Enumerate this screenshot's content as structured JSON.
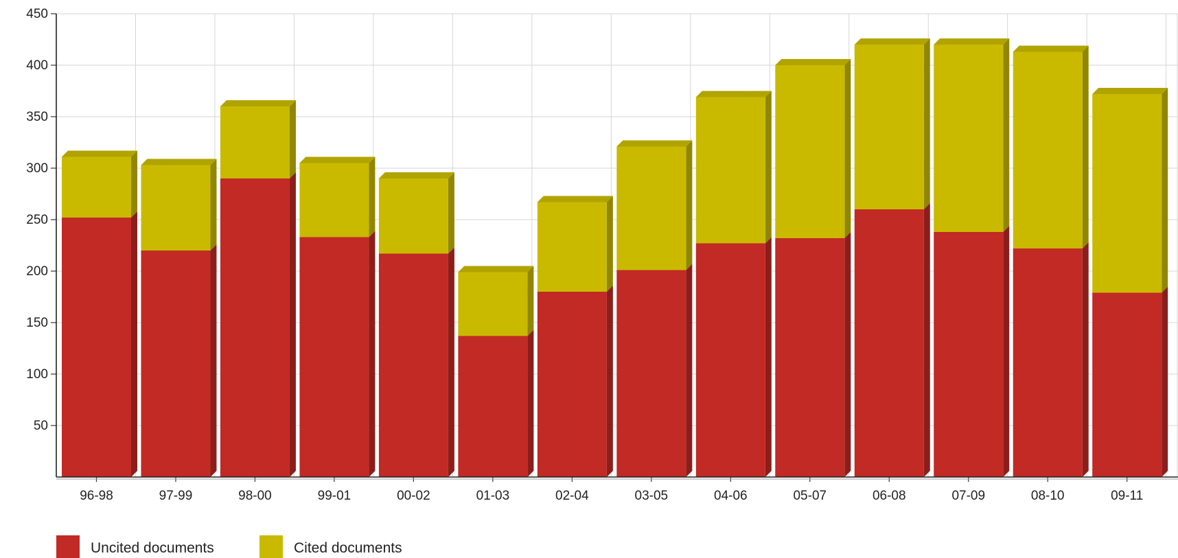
{
  "chart_data": {
    "type": "bar",
    "stacked": true,
    "categories": [
      "96-98",
      "97-99",
      "98-00",
      "99-01",
      "00-02",
      "01-03",
      "02-04",
      "03-05",
      "04-06",
      "05-07",
      "06-08",
      "07-09",
      "08-10",
      "09-11"
    ],
    "series": [
      {
        "name": "Uncited documents",
        "color": "#c12a25",
        "values": [
          252,
          220,
          290,
          233,
          217,
          137,
          180,
          201,
          227,
          232,
          260,
          238,
          222,
          179
        ]
      },
      {
        "name": "Cited documents",
        "color": "#c9ba00",
        "values": [
          59,
          83,
          70,
          72,
          73,
          62,
          87,
          120,
          142,
          168,
          160,
          182,
          191,
          193
        ]
      }
    ],
    "y_ticks": [
      "50",
      "100",
      "150",
      "200",
      "250",
      "300",
      "350",
      "400",
      "450"
    ],
    "ylim": [
      0,
      450
    ],
    "grid": true,
    "legend_position": "bottom-left"
  }
}
